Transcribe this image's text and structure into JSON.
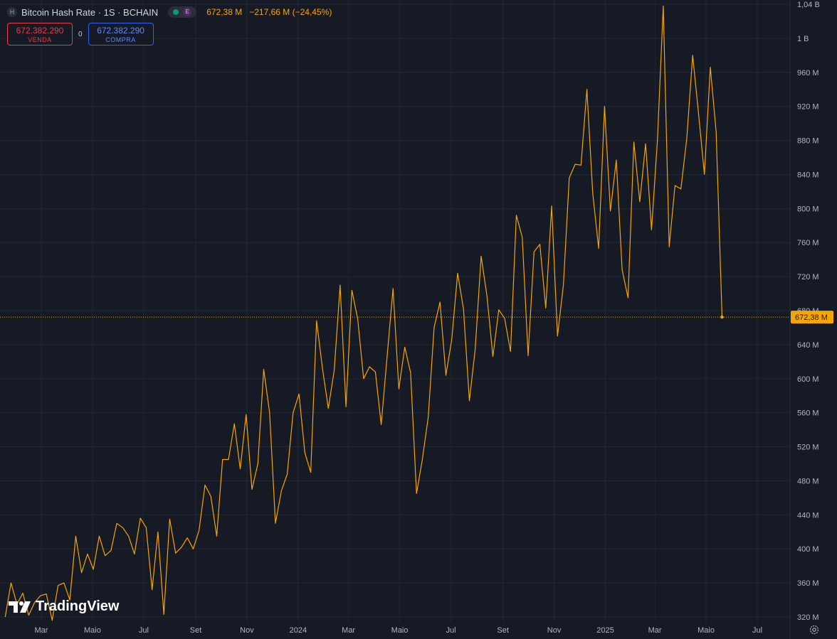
{
  "header": {
    "symbol_icon": "H",
    "title": "Bitcoin Hash Rate · 1S · BCHAIN",
    "e_badge": "E",
    "value": "672,38 M",
    "change": "−217,66 M (−24,45%)"
  },
  "trade": {
    "sell_price": "672.382.290",
    "sell_label": "VENDA",
    "spread": "0",
    "buy_price": "672.382.290",
    "buy_label": "COMPRA"
  },
  "branding": {
    "logo_text": "TradingView"
  },
  "colors": {
    "line": "#f7a600",
    "background": "#161a25",
    "grid": "#232733",
    "axis_text": "#b2b5be"
  },
  "chart_data": {
    "type": "line",
    "series_name": "",
    "y_unit": "M",
    "ylim": [
      316,
      1044
    ],
    "y_ticks": [
      {
        "v": 1040,
        "label": "1,04 B"
      },
      {
        "v": 1000,
        "label": "1 B"
      },
      {
        "v": 960,
        "label": "960 M"
      },
      {
        "v": 920,
        "label": "920 M"
      },
      {
        "v": 880,
        "label": "880 M"
      },
      {
        "v": 840,
        "label": "840 M"
      },
      {
        "v": 800,
        "label": "800 M"
      },
      {
        "v": 760,
        "label": "760 M"
      },
      {
        "v": 720,
        "label": "720 M"
      },
      {
        "v": 680,
        "label": "680 M"
      },
      {
        "v": 640,
        "label": "640 M"
      },
      {
        "v": 600,
        "label": "600 M"
      },
      {
        "v": 560,
        "label": "560 M"
      },
      {
        "v": 520,
        "label": "520 M"
      },
      {
        "v": 480,
        "label": "480 M"
      },
      {
        "v": 440,
        "label": "440 M"
      },
      {
        "v": 400,
        "label": "400 M"
      },
      {
        "v": 360,
        "label": "360 M"
      },
      {
        "v": 320,
        "label": "320 M"
      }
    ],
    "x_ticks": [
      {
        "date": "2023-03-01",
        "label": "Mar"
      },
      {
        "date": "2023-05-01",
        "label": "Maio"
      },
      {
        "date": "2023-07-01",
        "label": "Jul"
      },
      {
        "date": "2023-09-01",
        "label": "Set"
      },
      {
        "date": "2023-11-01",
        "label": "Nov"
      },
      {
        "date": "2024-01-01",
        "label": "2024"
      },
      {
        "date": "2024-03-01",
        "label": "Mar"
      },
      {
        "date": "2024-05-01",
        "label": "Maio"
      },
      {
        "date": "2024-07-01",
        "label": "Jul"
      },
      {
        "date": "2024-09-01",
        "label": "Set"
      },
      {
        "date": "2024-11-01",
        "label": "Nov"
      },
      {
        "date": "2025-01-01",
        "label": "2025"
      },
      {
        "date": "2025-03-01",
        "label": "Mar"
      },
      {
        "date": "2025-05-01",
        "label": "Maio"
      },
      {
        "date": "2025-07-01",
        "label": "Jul"
      }
    ],
    "last_value": 672.38,
    "last_label": "672,38 M",
    "points": [
      [
        "2023-01-17",
        320
      ],
      [
        "2023-01-24",
        360
      ],
      [
        "2023-01-31",
        335
      ],
      [
        "2023-02-07",
        348
      ],
      [
        "2023-02-14",
        322
      ],
      [
        "2023-02-21",
        337
      ],
      [
        "2023-02-28",
        345
      ],
      [
        "2023-03-07",
        347
      ],
      [
        "2023-03-14",
        316
      ],
      [
        "2023-03-21",
        357
      ],
      [
        "2023-03-28",
        360
      ],
      [
        "2023-04-04",
        340
      ],
      [
        "2023-04-11",
        415
      ],
      [
        "2023-04-18",
        372
      ],
      [
        "2023-04-25",
        394
      ],
      [
        "2023-05-02",
        376
      ],
      [
        "2023-05-09",
        415
      ],
      [
        "2023-05-16",
        392
      ],
      [
        "2023-05-23",
        398
      ],
      [
        "2023-05-30",
        430
      ],
      [
        "2023-06-06",
        425
      ],
      [
        "2023-06-13",
        415
      ],
      [
        "2023-06-20",
        394
      ],
      [
        "2023-06-27",
        436
      ],
      [
        "2023-07-04",
        425
      ],
      [
        "2023-07-11",
        352
      ],
      [
        "2023-07-18",
        420
      ],
      [
        "2023-07-25",
        323
      ],
      [
        "2023-08-01",
        435
      ],
      [
        "2023-08-08",
        395
      ],
      [
        "2023-08-15",
        402
      ],
      [
        "2023-08-22",
        413
      ],
      [
        "2023-08-29",
        400
      ],
      [
        "2023-09-05",
        422
      ],
      [
        "2023-09-12",
        475
      ],
      [
        "2023-09-19",
        462
      ],
      [
        "2023-09-26",
        415
      ],
      [
        "2023-10-03",
        505
      ],
      [
        "2023-10-10",
        505
      ],
      [
        "2023-10-17",
        547
      ],
      [
        "2023-10-24",
        494
      ],
      [
        "2023-10-31",
        558
      ],
      [
        "2023-11-07",
        470
      ],
      [
        "2023-11-14",
        500
      ],
      [
        "2023-11-21",
        611
      ],
      [
        "2023-11-28",
        560
      ],
      [
        "2023-12-05",
        430
      ],
      [
        "2023-12-12",
        468
      ],
      [
        "2023-12-19",
        488
      ],
      [
        "2023-12-26",
        560
      ],
      [
        "2024-01-02",
        582
      ],
      [
        "2024-01-09",
        513
      ],
      [
        "2024-01-16",
        490
      ],
      [
        "2024-01-23",
        668
      ],
      [
        "2024-01-30",
        612
      ],
      [
        "2024-02-06",
        565
      ],
      [
        "2024-02-13",
        610
      ],
      [
        "2024-02-20",
        710
      ],
      [
        "2024-02-27",
        567
      ],
      [
        "2024-03-05",
        704
      ],
      [
        "2024-03-12",
        670
      ],
      [
        "2024-03-19",
        600
      ],
      [
        "2024-03-26",
        614
      ],
      [
        "2024-04-02",
        608
      ],
      [
        "2024-04-09",
        546
      ],
      [
        "2024-04-16",
        626
      ],
      [
        "2024-04-23",
        706
      ],
      [
        "2024-04-30",
        588
      ],
      [
        "2024-05-07",
        637
      ],
      [
        "2024-05-14",
        607
      ],
      [
        "2024-05-21",
        465
      ],
      [
        "2024-05-28",
        505
      ],
      [
        "2024-06-04",
        555
      ],
      [
        "2024-06-11",
        660
      ],
      [
        "2024-06-18",
        690
      ],
      [
        "2024-06-25",
        604
      ],
      [
        "2024-07-02",
        646
      ],
      [
        "2024-07-09",
        724
      ],
      [
        "2024-07-16",
        682
      ],
      [
        "2024-07-23",
        574
      ],
      [
        "2024-07-30",
        635
      ],
      [
        "2024-08-06",
        744
      ],
      [
        "2024-08-13",
        697
      ],
      [
        "2024-08-20",
        626
      ],
      [
        "2024-08-27",
        681
      ],
      [
        "2024-09-03",
        671
      ],
      [
        "2024-09-10",
        632
      ],
      [
        "2024-09-17",
        792
      ],
      [
        "2024-09-24",
        766
      ],
      [
        "2024-10-01",
        627
      ],
      [
        "2024-10-08",
        749
      ],
      [
        "2024-10-15",
        758
      ],
      [
        "2024-10-22",
        683
      ],
      [
        "2024-10-29",
        803
      ],
      [
        "2024-11-05",
        650
      ],
      [
        "2024-11-12",
        710
      ],
      [
        "2024-11-19",
        836
      ],
      [
        "2024-11-26",
        852
      ],
      [
        "2024-12-03",
        851
      ],
      [
        "2024-12-10",
        940
      ],
      [
        "2024-12-17",
        818
      ],
      [
        "2024-12-24",
        753
      ],
      [
        "2024-12-31",
        920
      ],
      [
        "2025-01-07",
        797
      ],
      [
        "2025-01-14",
        857
      ],
      [
        "2025-01-21",
        728
      ],
      [
        "2025-01-28",
        695
      ],
      [
        "2025-02-04",
        878
      ],
      [
        "2025-02-11",
        808
      ],
      [
        "2025-02-18",
        876
      ],
      [
        "2025-02-25",
        775
      ],
      [
        "2025-03-04",
        880
      ],
      [
        "2025-03-11",
        1038
      ],
      [
        "2025-03-18",
        755
      ],
      [
        "2025-03-25",
        827
      ],
      [
        "2025-04-01",
        823
      ],
      [
        "2025-04-08",
        882
      ],
      [
        "2025-04-15",
        980
      ],
      [
        "2025-04-22",
        912
      ],
      [
        "2025-04-29",
        840
      ],
      [
        "2025-05-06",
        966
      ],
      [
        "2025-05-13",
        890
      ],
      [
        "2025-05-20",
        672.38
      ]
    ]
  }
}
